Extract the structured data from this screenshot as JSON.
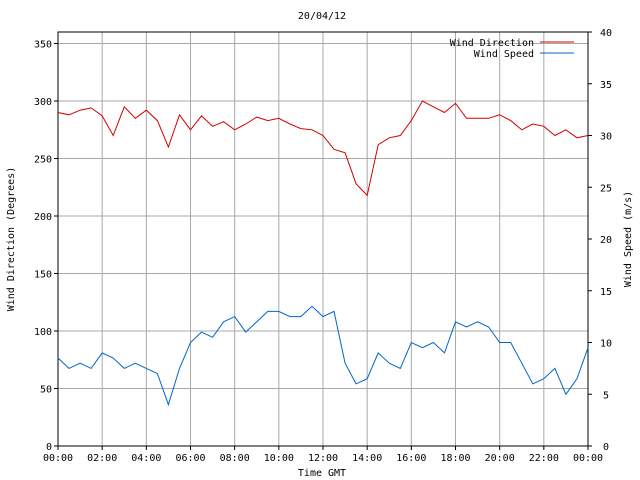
{
  "chart_data": {
    "type": "line",
    "title": "20/04/12",
    "xlabel": "Time GMT",
    "ylabel_left": "Wind Direction (Degrees)",
    "ylabel_right": "Wind Speed (m/s)",
    "x_ticks": [
      "00:00",
      "02:00",
      "04:00",
      "06:00",
      "08:00",
      "10:00",
      "12:00",
      "14:00",
      "16:00",
      "18:00",
      "20:00",
      "22:00",
      "00:00"
    ],
    "y_left_ticks": [
      0,
      50,
      100,
      150,
      200,
      250,
      300,
      350
    ],
    "y_right_ticks": [
      0,
      5,
      10,
      15,
      20,
      25,
      30,
      35,
      40
    ],
    "xlim_hours": [
      0,
      24
    ],
    "ylim_left": [
      0,
      360
    ],
    "ylim_right": [
      0,
      40
    ],
    "grid": true,
    "legend_position": "top-right",
    "series": [
      {
        "name": "Wind Direction",
        "axis": "left",
        "color": "#d40000",
        "x_hours": [
          0,
          0.5,
          1,
          1.5,
          2,
          2.5,
          3,
          3.5,
          4,
          4.5,
          5,
          5.5,
          6,
          6.5,
          7,
          7.5,
          8,
          8.5,
          9,
          9.5,
          10,
          10.5,
          11,
          11.5,
          12,
          12.5,
          13,
          13.5,
          14,
          14.5,
          15,
          15.5,
          16,
          16.5,
          17,
          17.5,
          18,
          18.5,
          19,
          19.5,
          20,
          20.5,
          21,
          21.5,
          22,
          22.5,
          23,
          23.5,
          24
        ],
        "values": [
          290,
          288,
          292,
          294,
          287,
          270,
          295,
          285,
          292,
          283,
          260,
          288,
          275,
          287,
          278,
          282,
          275,
          280,
          286,
          283,
          285,
          280,
          276,
          275,
          270,
          258,
          255,
          228,
          218,
          262,
          268,
          270,
          283,
          300,
          295,
          290,
          298,
          285,
          285,
          285,
          288,
          283,
          275,
          280,
          278,
          270,
          275,
          268,
          270
        ]
      },
      {
        "name": "Wind Speed",
        "axis": "right",
        "color": "#0066cc",
        "x_hours": [
          0,
          0.5,
          1,
          1.5,
          2,
          2.5,
          3,
          3.5,
          4,
          4.5,
          5,
          5.5,
          6,
          6.5,
          7,
          7.5,
          8,
          8.5,
          9,
          9.5,
          10,
          10.5,
          11,
          11.5,
          12,
          12.5,
          13,
          13.5,
          14,
          14.5,
          15,
          15.5,
          16,
          16.5,
          17,
          17.5,
          18,
          18.5,
          19,
          19.5,
          20,
          20.5,
          21,
          21.5,
          22,
          22.5,
          23,
          23.5,
          24
        ],
        "values": [
          8.5,
          7.5,
          8,
          7.5,
          9,
          8.5,
          7.5,
          8,
          7.5,
          7,
          4,
          7.5,
          10,
          11,
          10.5,
          12,
          12.5,
          11,
          12,
          13,
          13,
          12.5,
          12.5,
          13.5,
          12.5,
          13,
          8,
          6,
          6.5,
          9,
          8,
          7.5,
          10,
          9.5,
          10,
          9,
          12,
          11.5,
          12,
          11.5,
          10,
          10,
          8,
          6,
          6.5,
          7.5,
          5,
          6.5,
          9.5
        ]
      }
    ]
  }
}
